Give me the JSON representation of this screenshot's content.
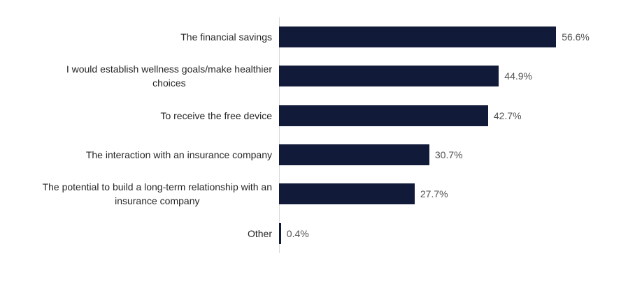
{
  "chart_data": {
    "type": "bar",
    "orientation": "horizontal",
    "title": "",
    "xlabel": "",
    "ylabel": "",
    "xlim": [
      0,
      60
    ],
    "grid": false,
    "legend": false,
    "categories": [
      "The financial savings",
      "I would establish wellness goals/make healthier\nchoices",
      "To receive the free device",
      "The interaction with an insurance company",
      "The potential to build a long-term relationship with an\ninsurance company",
      "Other"
    ],
    "values": [
      56.6,
      44.9,
      42.7,
      30.7,
      27.7,
      0.4
    ],
    "value_labels": [
      "56.6%",
      "44.9%",
      "42.7%",
      "30.7%",
      "27.7%",
      "0.4%"
    ],
    "colors": {
      "bar": "#111a38",
      "axis_line": "#d9d9d9",
      "category_label": "#262626",
      "value_label": "#525252",
      "background": "#ffffff"
    }
  }
}
